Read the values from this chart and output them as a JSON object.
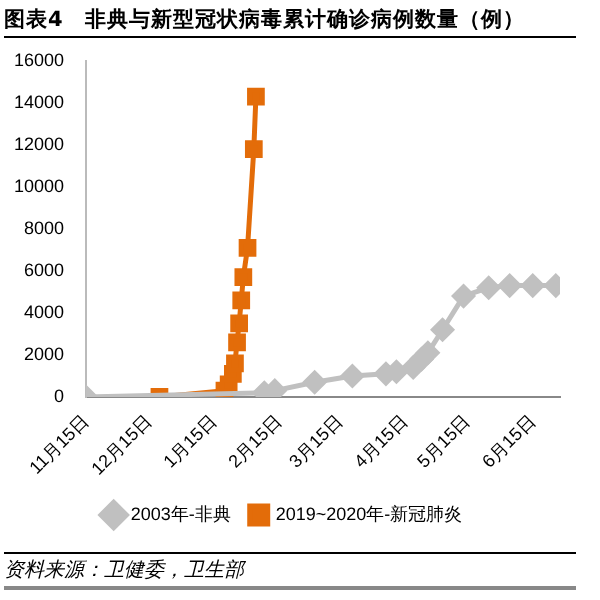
{
  "chart_data": {
    "type": "line",
    "title": "图表4　非典与新型冠状病毒累计确诊病例数量（例）",
    "xlim": [
      "2019-11-15",
      "2020-06-28"
    ],
    "xticks": [
      {
        "value": "2019-11-15",
        "label": "11月15日"
      },
      {
        "value": "2019-12-15",
        "label": "12月15日"
      },
      {
        "value": "2020-01-15",
        "label": "1月15日"
      },
      {
        "value": "2020-02-15",
        "label": "2月15日"
      },
      {
        "value": "2020-03-15",
        "label": "3月15日"
      },
      {
        "value": "2020-04-15",
        "label": "4月15日"
      },
      {
        "value": "2020-05-15",
        "label": "5月15日"
      },
      {
        "value": "2020-06-15",
        "label": "6月15日"
      }
    ],
    "ylim": [
      0,
      16000
    ],
    "yticks": [
      0,
      2000,
      4000,
      6000,
      8000,
      10000,
      12000,
      14000,
      16000
    ],
    "grid": false,
    "legend": "bottom",
    "series": [
      {
        "name": "2003年-非典",
        "color": "#c0c0c0",
        "marker": "diamond",
        "x": [
          "2019-11-15",
          "2020-02-08",
          "2020-02-13",
          "2020-03-03",
          "2020-03-21",
          "2020-04-06",
          "2020-04-11",
          "2020-04-19",
          "2020-04-23",
          "2020-04-26",
          "2020-05-03",
          "2020-05-13",
          "2020-05-25",
          "2020-06-04",
          "2020-06-15",
          "2020-06-26"
        ],
        "values": [
          0,
          200,
          300,
          700,
          1000,
          1100,
          1200,
          1400,
          1800,
          2100,
          3200,
          4800,
          5200,
          5300,
          5300,
          5300
        ]
      },
      {
        "name": "2019~2020年-新冠肺炎",
        "color": "#e36c09",
        "marker": "square",
        "x": [
          "2019-12-20",
          "2020-01-20",
          "2020-01-22",
          "2020-01-24",
          "2020-01-25",
          "2020-01-26",
          "2020-01-27",
          "2020-01-28",
          "2020-01-29",
          "2020-01-31",
          "2020-02-03",
          "2020-02-04"
        ],
        "values": [
          0,
          300,
          600,
          1100,
          1600,
          2600,
          3500,
          4600,
          5700,
          7100,
          11800,
          14300
        ]
      }
    ],
    "annotations": [
      "资料来源：卫健委，卫生部"
    ]
  }
}
